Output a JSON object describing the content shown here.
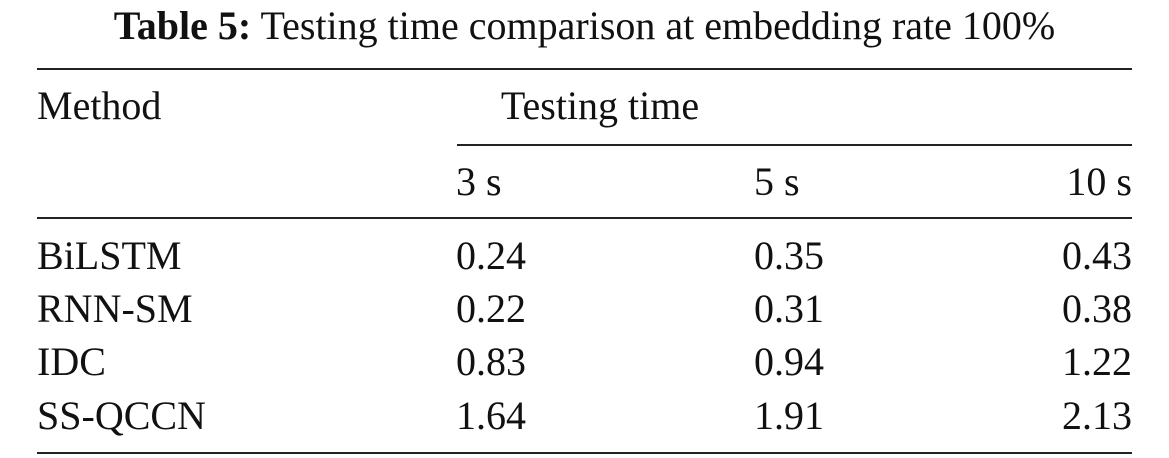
{
  "caption": {
    "label": "Table 5:",
    "text": "Testing time comparison at embedding rate 100%"
  },
  "table": {
    "method_header": "Method",
    "group_header": "Testing time",
    "columns": [
      "3 s",
      "5  s",
      "10 s"
    ],
    "rows": [
      {
        "method": "BiLSTM",
        "values": [
          "0.24",
          "0.35",
          "0.43"
        ]
      },
      {
        "method": "RNN-SM",
        "values": [
          "0.22",
          "0.31",
          "0.38"
        ]
      },
      {
        "method": "IDC",
        "values": [
          "0.83",
          "0.94",
          "1.22"
        ]
      },
      {
        "method": "SS-QCCN",
        "values": [
          "1.64",
          "1.91",
          "2.13"
        ]
      }
    ]
  }
}
